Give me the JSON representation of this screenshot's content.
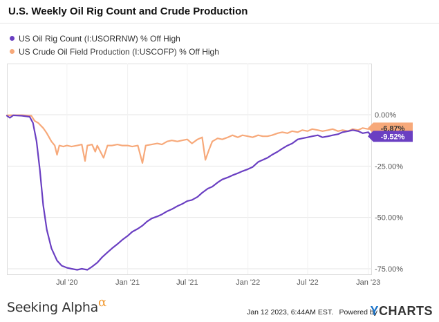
{
  "chart_data": {
    "type": "line",
    "title": "U.S. Weekly Oil Rig Count and Crude Production",
    "x_tick_labels": [
      "Jul '20",
      "Jan '21",
      "Jul '21",
      "Jan '22",
      "Jul '22",
      "Jan '23"
    ],
    "y_tick_labels": [
      "0.00%",
      "-25.00%",
      "-50.00%",
      "-75.00%"
    ],
    "ylim": [
      -77,
      0
    ],
    "grid": true,
    "legend_position": "top-left",
    "series": [
      {
        "name": "US Oil Rig Count (I:USORRNW) % Off High",
        "color": "#6a3fc2",
        "last_label": "-9.52%",
        "points": [
          [
            "2020-01-01",
            -0.5
          ],
          [
            "2020-01-10",
            -1.5
          ],
          [
            "2020-01-20",
            -0.3
          ],
          [
            "2020-02-15",
            -0.5
          ],
          [
            "2020-03-10",
            -1.0
          ],
          [
            "2020-03-20",
            -4.0
          ],
          [
            "2020-03-31",
            -13.0
          ],
          [
            "2020-04-10",
            -27.0
          ],
          [
            "2020-04-20",
            -44.0
          ],
          [
            "2020-05-01",
            -56.0
          ],
          [
            "2020-05-15",
            -65.0
          ],
          [
            "2020-06-01",
            -71.0
          ],
          [
            "2020-06-15",
            -73.5
          ],
          [
            "2020-07-01",
            -74.5
          ],
          [
            "2020-07-15",
            -75.0
          ],
          [
            "2020-08-01",
            -75.5
          ],
          [
            "2020-08-15",
            -75.0
          ],
          [
            "2020-09-01",
            -75.5
          ],
          [
            "2020-09-15",
            -74.0
          ],
          [
            "2020-10-01",
            -72.0
          ],
          [
            "2020-10-15",
            -69.5
          ],
          [
            "2020-11-01",
            -67.0
          ],
          [
            "2020-11-15",
            -65.0
          ],
          [
            "2020-12-01",
            -63.0
          ],
          [
            "2020-12-15",
            -61.0
          ],
          [
            "2021-01-01",
            -59.0
          ],
          [
            "2021-01-15",
            -57.0
          ],
          [
            "2021-02-01",
            -55.5
          ],
          [
            "2021-02-15",
            -54.0
          ],
          [
            "2021-03-01",
            -52.0
          ],
          [
            "2021-03-15",
            -50.5
          ],
          [
            "2021-04-01",
            -49.5
          ],
          [
            "2021-04-15",
            -48.5
          ],
          [
            "2021-05-01",
            -47.0
          ],
          [
            "2021-05-15",
            -46.0
          ],
          [
            "2021-06-01",
            -44.5
          ],
          [
            "2021-06-15",
            -43.5
          ],
          [
            "2021-07-01",
            -42.0
          ],
          [
            "2021-07-15",
            -41.5
          ],
          [
            "2021-08-01",
            -40.0
          ],
          [
            "2021-08-15",
            -38.0
          ],
          [
            "2021-09-01",
            -36.0
          ],
          [
            "2021-09-15",
            -35.0
          ],
          [
            "2021-10-01",
            -33.0
          ],
          [
            "2021-10-15",
            -31.5
          ],
          [
            "2021-11-01",
            -30.5
          ],
          [
            "2021-11-15",
            -29.5
          ],
          [
            "2021-12-01",
            -28.5
          ],
          [
            "2021-12-15",
            -27.5
          ],
          [
            "2022-01-01",
            -26.5
          ],
          [
            "2022-01-15",
            -25.5
          ],
          [
            "2022-02-01",
            -23.0
          ],
          [
            "2022-02-15",
            -22.0
          ],
          [
            "2022-03-01",
            -21.0
          ],
          [
            "2022-03-15",
            -19.5
          ],
          [
            "2022-04-01",
            -18.0
          ],
          [
            "2022-04-15",
            -16.5
          ],
          [
            "2022-05-01",
            -15.0
          ],
          [
            "2022-05-15",
            -14.0
          ],
          [
            "2022-06-01",
            -12.0
          ],
          [
            "2022-06-15",
            -11.5
          ],
          [
            "2022-07-01",
            -11.0
          ],
          [
            "2022-07-15",
            -10.5
          ],
          [
            "2022-08-01",
            -10.0
          ],
          [
            "2022-08-15",
            -11.0
          ],
          [
            "2022-09-01",
            -10.5
          ],
          [
            "2022-09-15",
            -10.0
          ],
          [
            "2022-10-01",
            -9.5
          ],
          [
            "2022-10-15",
            -8.5
          ],
          [
            "2022-11-01",
            -8.0
          ],
          [
            "2022-11-15",
            -7.5
          ],
          [
            "2022-12-01",
            -8.0
          ],
          [
            "2022-12-15",
            -9.0
          ],
          [
            "2023-01-01",
            -8.5
          ],
          [
            "2023-01-06",
            -9.52
          ]
        ]
      },
      {
        "name": "US Crude Oil Field Production (I:USCOFP) % Off High",
        "color": "#f7a97a",
        "last_label": "-6.87%",
        "points": [
          [
            "2020-01-01",
            -0.3
          ],
          [
            "2020-02-15",
            -0.2
          ],
          [
            "2020-03-15",
            -0.5
          ],
          [
            "2020-03-25",
            -3.0
          ],
          [
            "2020-04-05",
            -4.0
          ],
          [
            "2020-04-20",
            -6.5
          ],
          [
            "2020-05-01",
            -9.0
          ],
          [
            "2020-05-15",
            -13.0
          ],
          [
            "2020-05-25",
            -15.0
          ],
          [
            "2020-06-01",
            -19.5
          ],
          [
            "2020-06-08",
            -15.0
          ],
          [
            "2020-06-20",
            -15.5
          ],
          [
            "2020-07-01",
            -15.0
          ],
          [
            "2020-07-15",
            -15.5
          ],
          [
            "2020-08-01",
            -15.0
          ],
          [
            "2020-08-15",
            -14.5
          ],
          [
            "2020-08-25",
            -22.5
          ],
          [
            "2020-09-01",
            -15.0
          ],
          [
            "2020-09-15",
            -14.5
          ],
          [
            "2020-09-25",
            -18.0
          ],
          [
            "2020-10-01",
            -15.0
          ],
          [
            "2020-10-20",
            -21.0
          ],
          [
            "2020-11-01",
            -15.0
          ],
          [
            "2020-11-15",
            -15.0
          ],
          [
            "2020-12-01",
            -14.5
          ],
          [
            "2020-12-15",
            -15.0
          ],
          [
            "2021-01-01",
            -15.0
          ],
          [
            "2021-01-15",
            -15.5
          ],
          [
            "2021-02-01",
            -15.0
          ],
          [
            "2021-02-15",
            -23.5
          ],
          [
            "2021-02-25",
            -15.0
          ],
          [
            "2021-03-15",
            -14.5
          ],
          [
            "2021-04-01",
            -14.0
          ],
          [
            "2021-04-15",
            -14.5
          ],
          [
            "2021-05-01",
            -13.0
          ],
          [
            "2021-05-15",
            -12.5
          ],
          [
            "2021-06-01",
            -13.0
          ],
          [
            "2021-06-15",
            -12.5
          ],
          [
            "2021-07-01",
            -12.0
          ],
          [
            "2021-07-15",
            -14.0
          ],
          [
            "2021-08-01",
            -12.0
          ],
          [
            "2021-08-15",
            -11.0
          ],
          [
            "2021-08-25",
            -22.0
          ],
          [
            "2021-09-05",
            -17.0
          ],
          [
            "2021-09-15",
            -13.0
          ],
          [
            "2021-10-01",
            -11.5
          ],
          [
            "2021-10-15",
            -12.0
          ],
          [
            "2021-11-01",
            -11.0
          ],
          [
            "2021-11-15",
            -10.0
          ],
          [
            "2021-12-01",
            -11.0
          ],
          [
            "2021-12-15",
            -10.0
          ],
          [
            "2022-01-01",
            -10.5
          ],
          [
            "2022-01-15",
            -11.0
          ],
          [
            "2022-02-01",
            -10.0
          ],
          [
            "2022-02-15",
            -10.5
          ],
          [
            "2022-03-01",
            -10.5
          ],
          [
            "2022-03-15",
            -10.0
          ],
          [
            "2022-04-01",
            -9.0
          ],
          [
            "2022-04-15",
            -8.5
          ],
          [
            "2022-05-01",
            -9.0
          ],
          [
            "2022-05-15",
            -8.0
          ],
          [
            "2022-06-01",
            -8.5
          ],
          [
            "2022-06-15",
            -7.5
          ],
          [
            "2022-07-01",
            -8.0
          ],
          [
            "2022-07-15",
            -7.0
          ],
          [
            "2022-08-01",
            -7.5
          ],
          [
            "2022-08-15",
            -8.0
          ],
          [
            "2022-09-01",
            -7.5
          ],
          [
            "2022-09-15",
            -7.0
          ],
          [
            "2022-10-01",
            -8.0
          ],
          [
            "2022-10-15",
            -7.5
          ],
          [
            "2022-11-01",
            -8.0
          ],
          [
            "2022-11-15",
            -7.0
          ],
          [
            "2022-12-01",
            -7.5
          ],
          [
            "2022-12-15",
            -6.5
          ],
          [
            "2023-01-01",
            -7.0
          ],
          [
            "2023-01-06",
            -6.87
          ]
        ]
      }
    ]
  },
  "footer": {
    "brand": "Seeking Alpha",
    "brand_mark": "α",
    "timestamp": "Jan 12 2023, 6:44AM EST.",
    "powered_by": "Powered by",
    "provider_y": "Y",
    "provider_rest": "CHARTS"
  },
  "colors": {
    "gridline": "#e6e6e6",
    "axis_text": "#555555"
  }
}
